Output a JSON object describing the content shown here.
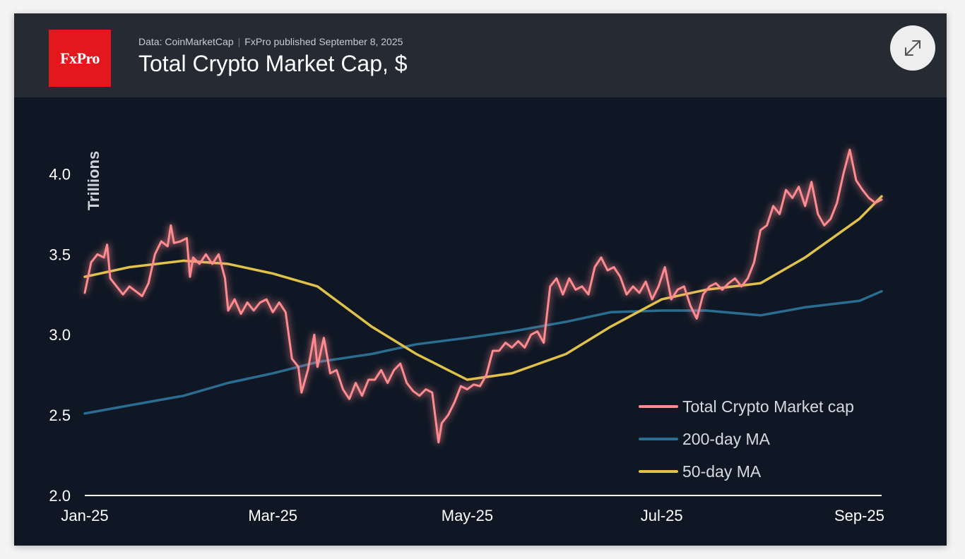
{
  "header": {
    "source": "Data: CoinMarketCap",
    "separator": "|",
    "published": "FxPro published September 8, 2025",
    "title": "Total Crypto Market Cap, $",
    "logo_text": "FxPro",
    "expand_icon": "expand-arrows-icon"
  },
  "colors": {
    "background": "#0f1724",
    "header_bg": "#252a33",
    "logo_red": "#e3181c",
    "market_cap": "#ff8a8f",
    "ma200": "#2b6c91",
    "ma50": "#e0c24a"
  },
  "chart_data": {
    "type": "line",
    "title": "Total Crypto Market Cap, $",
    "ylabel": "Trillions",
    "xlabel": "",
    "ylim": [
      2.0,
      4.3
    ],
    "yticks": [
      2.0,
      2.5,
      3.0,
      3.5,
      4.0
    ],
    "ytick_labels": [
      "2.0",
      "2.5",
      "3.0",
      "3.5",
      "4.0"
    ],
    "xlim": [
      "2025-01-01",
      "2025-09-08"
    ],
    "xticks": [
      "2025-01-01",
      "2025-03-01",
      "2025-05-01",
      "2025-07-01",
      "2025-09-01"
    ],
    "xtick_labels": [
      "Jan-25",
      "Mar-25",
      "May-25",
      "Jul-25",
      "Sep-25"
    ],
    "grid": false,
    "legend_position": "bottom-right",
    "series": [
      {
        "name": "Total Crypto Market cap",
        "color": "#ff8a8f",
        "points": [
          [
            "2025-01-01",
            3.26
          ],
          [
            "2025-01-03",
            3.45
          ],
          [
            "2025-01-05",
            3.5
          ],
          [
            "2025-01-07",
            3.48
          ],
          [
            "2025-01-08",
            3.56
          ],
          [
            "2025-01-09",
            3.35
          ],
          [
            "2025-01-11",
            3.3
          ],
          [
            "2025-01-13",
            3.25
          ],
          [
            "2025-01-15",
            3.3
          ],
          [
            "2025-01-17",
            3.27
          ],
          [
            "2025-01-19",
            3.24
          ],
          [
            "2025-01-21",
            3.32
          ],
          [
            "2025-01-23",
            3.5
          ],
          [
            "2025-01-25",
            3.58
          ],
          [
            "2025-01-27",
            3.55
          ],
          [
            "2025-01-28",
            3.68
          ],
          [
            "2025-01-29",
            3.57
          ],
          [
            "2025-01-31",
            3.58
          ],
          [
            "2025-02-02",
            3.6
          ],
          [
            "2025-02-03",
            3.36
          ],
          [
            "2025-02-04",
            3.48
          ],
          [
            "2025-02-06",
            3.44
          ],
          [
            "2025-02-08",
            3.5
          ],
          [
            "2025-02-10",
            3.44
          ],
          [
            "2025-02-12",
            3.5
          ],
          [
            "2025-02-14",
            3.35
          ],
          [
            "2025-02-15",
            3.15
          ],
          [
            "2025-02-17",
            3.22
          ],
          [
            "2025-02-19",
            3.13
          ],
          [
            "2025-02-21",
            3.2
          ],
          [
            "2025-02-23",
            3.15
          ],
          [
            "2025-02-25",
            3.2
          ],
          [
            "2025-02-27",
            3.22
          ],
          [
            "2025-03-01",
            3.14
          ],
          [
            "2025-03-03",
            3.2
          ],
          [
            "2025-03-05",
            3.14
          ],
          [
            "2025-03-07",
            2.85
          ],
          [
            "2025-03-09",
            2.8
          ],
          [
            "2025-03-10",
            2.64
          ],
          [
            "2025-03-12",
            2.78
          ],
          [
            "2025-03-14",
            3.0
          ],
          [
            "2025-03-15",
            2.8
          ],
          [
            "2025-03-17",
            2.98
          ],
          [
            "2025-03-19",
            2.76
          ],
          [
            "2025-03-21",
            2.78
          ],
          [
            "2025-03-23",
            2.66
          ],
          [
            "2025-03-25",
            2.6
          ],
          [
            "2025-03-27",
            2.7
          ],
          [
            "2025-03-29",
            2.62
          ],
          [
            "2025-03-31",
            2.72
          ],
          [
            "2025-04-02",
            2.72
          ],
          [
            "2025-04-04",
            2.78
          ],
          [
            "2025-04-06",
            2.7
          ],
          [
            "2025-04-08",
            2.78
          ],
          [
            "2025-04-10",
            2.82
          ],
          [
            "2025-04-12",
            2.7
          ],
          [
            "2025-04-14",
            2.65
          ],
          [
            "2025-04-16",
            2.62
          ],
          [
            "2025-04-18",
            2.66
          ],
          [
            "2025-04-20",
            2.64
          ],
          [
            "2025-04-22",
            2.33
          ],
          [
            "2025-04-23",
            2.45
          ],
          [
            "2025-04-25",
            2.5
          ],
          [
            "2025-04-27",
            2.58
          ],
          [
            "2025-04-29",
            2.68
          ],
          [
            "2025-05-01",
            2.66
          ],
          [
            "2025-05-03",
            2.69
          ],
          [
            "2025-05-05",
            2.68
          ],
          [
            "2025-05-07",
            2.75
          ],
          [
            "2025-05-09",
            2.9
          ],
          [
            "2025-05-11",
            2.9
          ],
          [
            "2025-05-13",
            2.95
          ],
          [
            "2025-05-15",
            2.92
          ],
          [
            "2025-05-17",
            2.96
          ],
          [
            "2025-05-19",
            2.92
          ],
          [
            "2025-05-21",
            3.0
          ],
          [
            "2025-05-23",
            3.02
          ],
          [
            "2025-05-25",
            2.95
          ],
          [
            "2025-05-27",
            3.3
          ],
          [
            "2025-05-29",
            3.35
          ],
          [
            "2025-05-31",
            3.25
          ],
          [
            "2025-06-02",
            3.35
          ],
          [
            "2025-06-04",
            3.28
          ],
          [
            "2025-06-06",
            3.3
          ],
          [
            "2025-06-08",
            3.25
          ],
          [
            "2025-06-10",
            3.42
          ],
          [
            "2025-06-12",
            3.48
          ],
          [
            "2025-06-14",
            3.4
          ],
          [
            "2025-06-16",
            3.42
          ],
          [
            "2025-06-18",
            3.36
          ],
          [
            "2025-06-20",
            3.25
          ],
          [
            "2025-06-22",
            3.3
          ],
          [
            "2025-06-24",
            3.26
          ],
          [
            "2025-06-26",
            3.33
          ],
          [
            "2025-06-28",
            3.22
          ],
          [
            "2025-06-30",
            3.3
          ],
          [
            "2025-07-02",
            3.42
          ],
          [
            "2025-07-04",
            3.22
          ],
          [
            "2025-07-06",
            3.28
          ],
          [
            "2025-07-08",
            3.3
          ],
          [
            "2025-07-10",
            3.18
          ],
          [
            "2025-07-12",
            3.1
          ],
          [
            "2025-07-14",
            3.25
          ],
          [
            "2025-07-16",
            3.3
          ],
          [
            "2025-07-18",
            3.32
          ],
          [
            "2025-07-20",
            3.28
          ],
          [
            "2025-07-22",
            3.32
          ],
          [
            "2025-07-24",
            3.35
          ],
          [
            "2025-07-26",
            3.3
          ],
          [
            "2025-07-28",
            3.35
          ],
          [
            "2025-07-30",
            3.45
          ],
          [
            "2025-08-01",
            3.65
          ],
          [
            "2025-08-03",
            3.68
          ],
          [
            "2025-08-05",
            3.8
          ],
          [
            "2025-08-07",
            3.75
          ],
          [
            "2025-08-09",
            3.9
          ],
          [
            "2025-08-11",
            3.85
          ],
          [
            "2025-08-13",
            3.92
          ],
          [
            "2025-08-15",
            3.8
          ],
          [
            "2025-08-17",
            3.95
          ],
          [
            "2025-08-19",
            3.75
          ],
          [
            "2025-08-21",
            3.68
          ],
          [
            "2025-08-23",
            3.72
          ],
          [
            "2025-08-25",
            3.82
          ],
          [
            "2025-08-27",
            4.0
          ],
          [
            "2025-08-29",
            4.15
          ],
          [
            "2025-08-31",
            3.96
          ],
          [
            "2025-09-02",
            3.9
          ],
          [
            "2025-09-04",
            3.85
          ],
          [
            "2025-09-06",
            3.82
          ],
          [
            "2025-09-08",
            3.84
          ]
        ]
      },
      {
        "name": "200-day MA",
        "color": "#2b6c91",
        "points": [
          [
            "2025-01-01",
            2.51
          ],
          [
            "2025-01-15",
            2.56
          ],
          [
            "2025-02-01",
            2.62
          ],
          [
            "2025-02-15",
            2.7
          ],
          [
            "2025-03-01",
            2.76
          ],
          [
            "2025-03-15",
            2.83
          ],
          [
            "2025-04-01",
            2.88
          ],
          [
            "2025-04-15",
            2.94
          ],
          [
            "2025-05-01",
            2.98
          ],
          [
            "2025-05-15",
            3.02
          ],
          [
            "2025-06-01",
            3.08
          ],
          [
            "2025-06-15",
            3.14
          ],
          [
            "2025-07-01",
            3.15
          ],
          [
            "2025-07-15",
            3.15
          ],
          [
            "2025-08-01",
            3.12
          ],
          [
            "2025-08-15",
            3.17
          ],
          [
            "2025-09-01",
            3.21
          ],
          [
            "2025-09-08",
            3.27
          ]
        ]
      },
      {
        "name": "50-day MA",
        "color": "#e0c24a",
        "points": [
          [
            "2025-01-01",
            3.36
          ],
          [
            "2025-01-15",
            3.42
          ],
          [
            "2025-02-01",
            3.46
          ],
          [
            "2025-02-15",
            3.44
          ],
          [
            "2025-03-01",
            3.38
          ],
          [
            "2025-03-15",
            3.3
          ],
          [
            "2025-04-01",
            3.05
          ],
          [
            "2025-04-15",
            2.88
          ],
          [
            "2025-05-01",
            2.72
          ],
          [
            "2025-05-15",
            2.76
          ],
          [
            "2025-06-01",
            2.88
          ],
          [
            "2025-06-15",
            3.05
          ],
          [
            "2025-07-01",
            3.22
          ],
          [
            "2025-07-15",
            3.28
          ],
          [
            "2025-08-01",
            3.32
          ],
          [
            "2025-08-15",
            3.48
          ],
          [
            "2025-09-01",
            3.72
          ],
          [
            "2025-09-08",
            3.86
          ]
        ]
      }
    ]
  }
}
